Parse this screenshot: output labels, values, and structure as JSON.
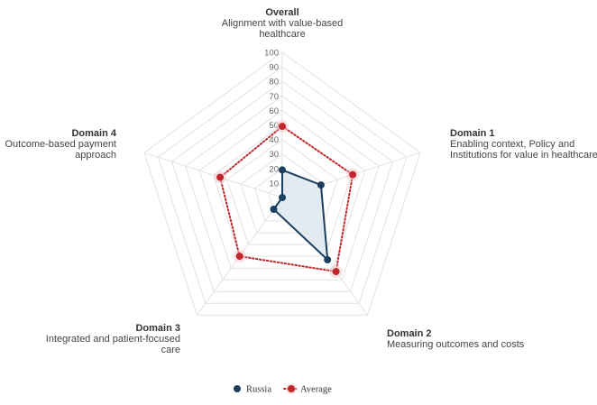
{
  "chart_data": {
    "type": "radar",
    "r_range": [
      0,
      100
    ],
    "r_ticks": [
      10,
      20,
      30,
      40,
      50,
      60,
      70,
      80,
      90,
      100
    ],
    "grid": true,
    "legend_position": "bottom-center",
    "axes": [
      {
        "title": "Overall",
        "desc_lines": [
          "Alignment with value-based",
          "healthcare"
        ]
      },
      {
        "title": "Domain 1",
        "desc_lines": [
          "Enabling context, Policy and",
          "Institutions for value in healthcare"
        ]
      },
      {
        "title": "Domain 2",
        "desc_lines": [
          "Measuring outcomes and costs"
        ]
      },
      {
        "title": "Domain 3",
        "desc_lines": [
          "Integrated and patient-focused",
          "care"
        ]
      },
      {
        "title": "Domain 4",
        "desc_lines": [
          "Outcome-based payment",
          "approach"
        ]
      }
    ],
    "series": [
      {
        "name": "Russia",
        "values": [
          19,
          28,
          53,
          10,
          0
        ],
        "color": "#1c3f5e",
        "fill": "#dde7ef",
        "style": "solid"
      },
      {
        "name": "Average",
        "values": [
          49,
          51,
          63,
          50,
          45
        ],
        "color": "#c0272d",
        "style": "dotted"
      }
    ]
  }
}
